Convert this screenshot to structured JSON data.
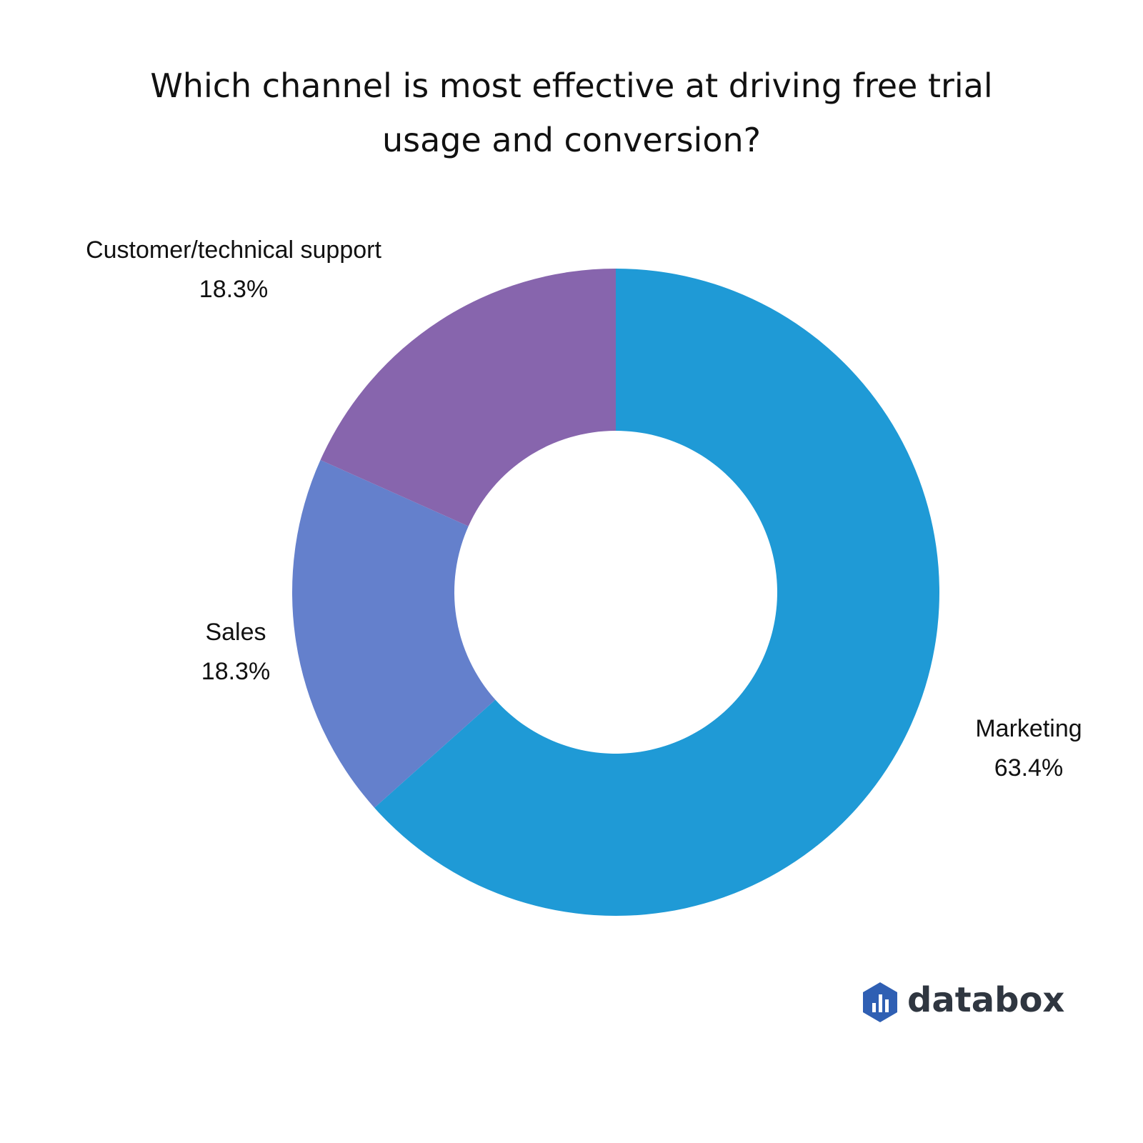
{
  "chart_data": {
    "type": "donut",
    "title": "Which channel is most effective at driving free trial usage and conversion?",
    "categories": [
      "Marketing",
      "Sales",
      "Customer/technical support"
    ],
    "values": [
      63.4,
      18.3,
      18.3
    ],
    "value_labels": [
      "63.4%",
      "18.3%",
      "18.3%"
    ],
    "colors": [
      "#1f9ad6",
      "#6480cc",
      "#8765ad"
    ]
  },
  "logo": "databox"
}
